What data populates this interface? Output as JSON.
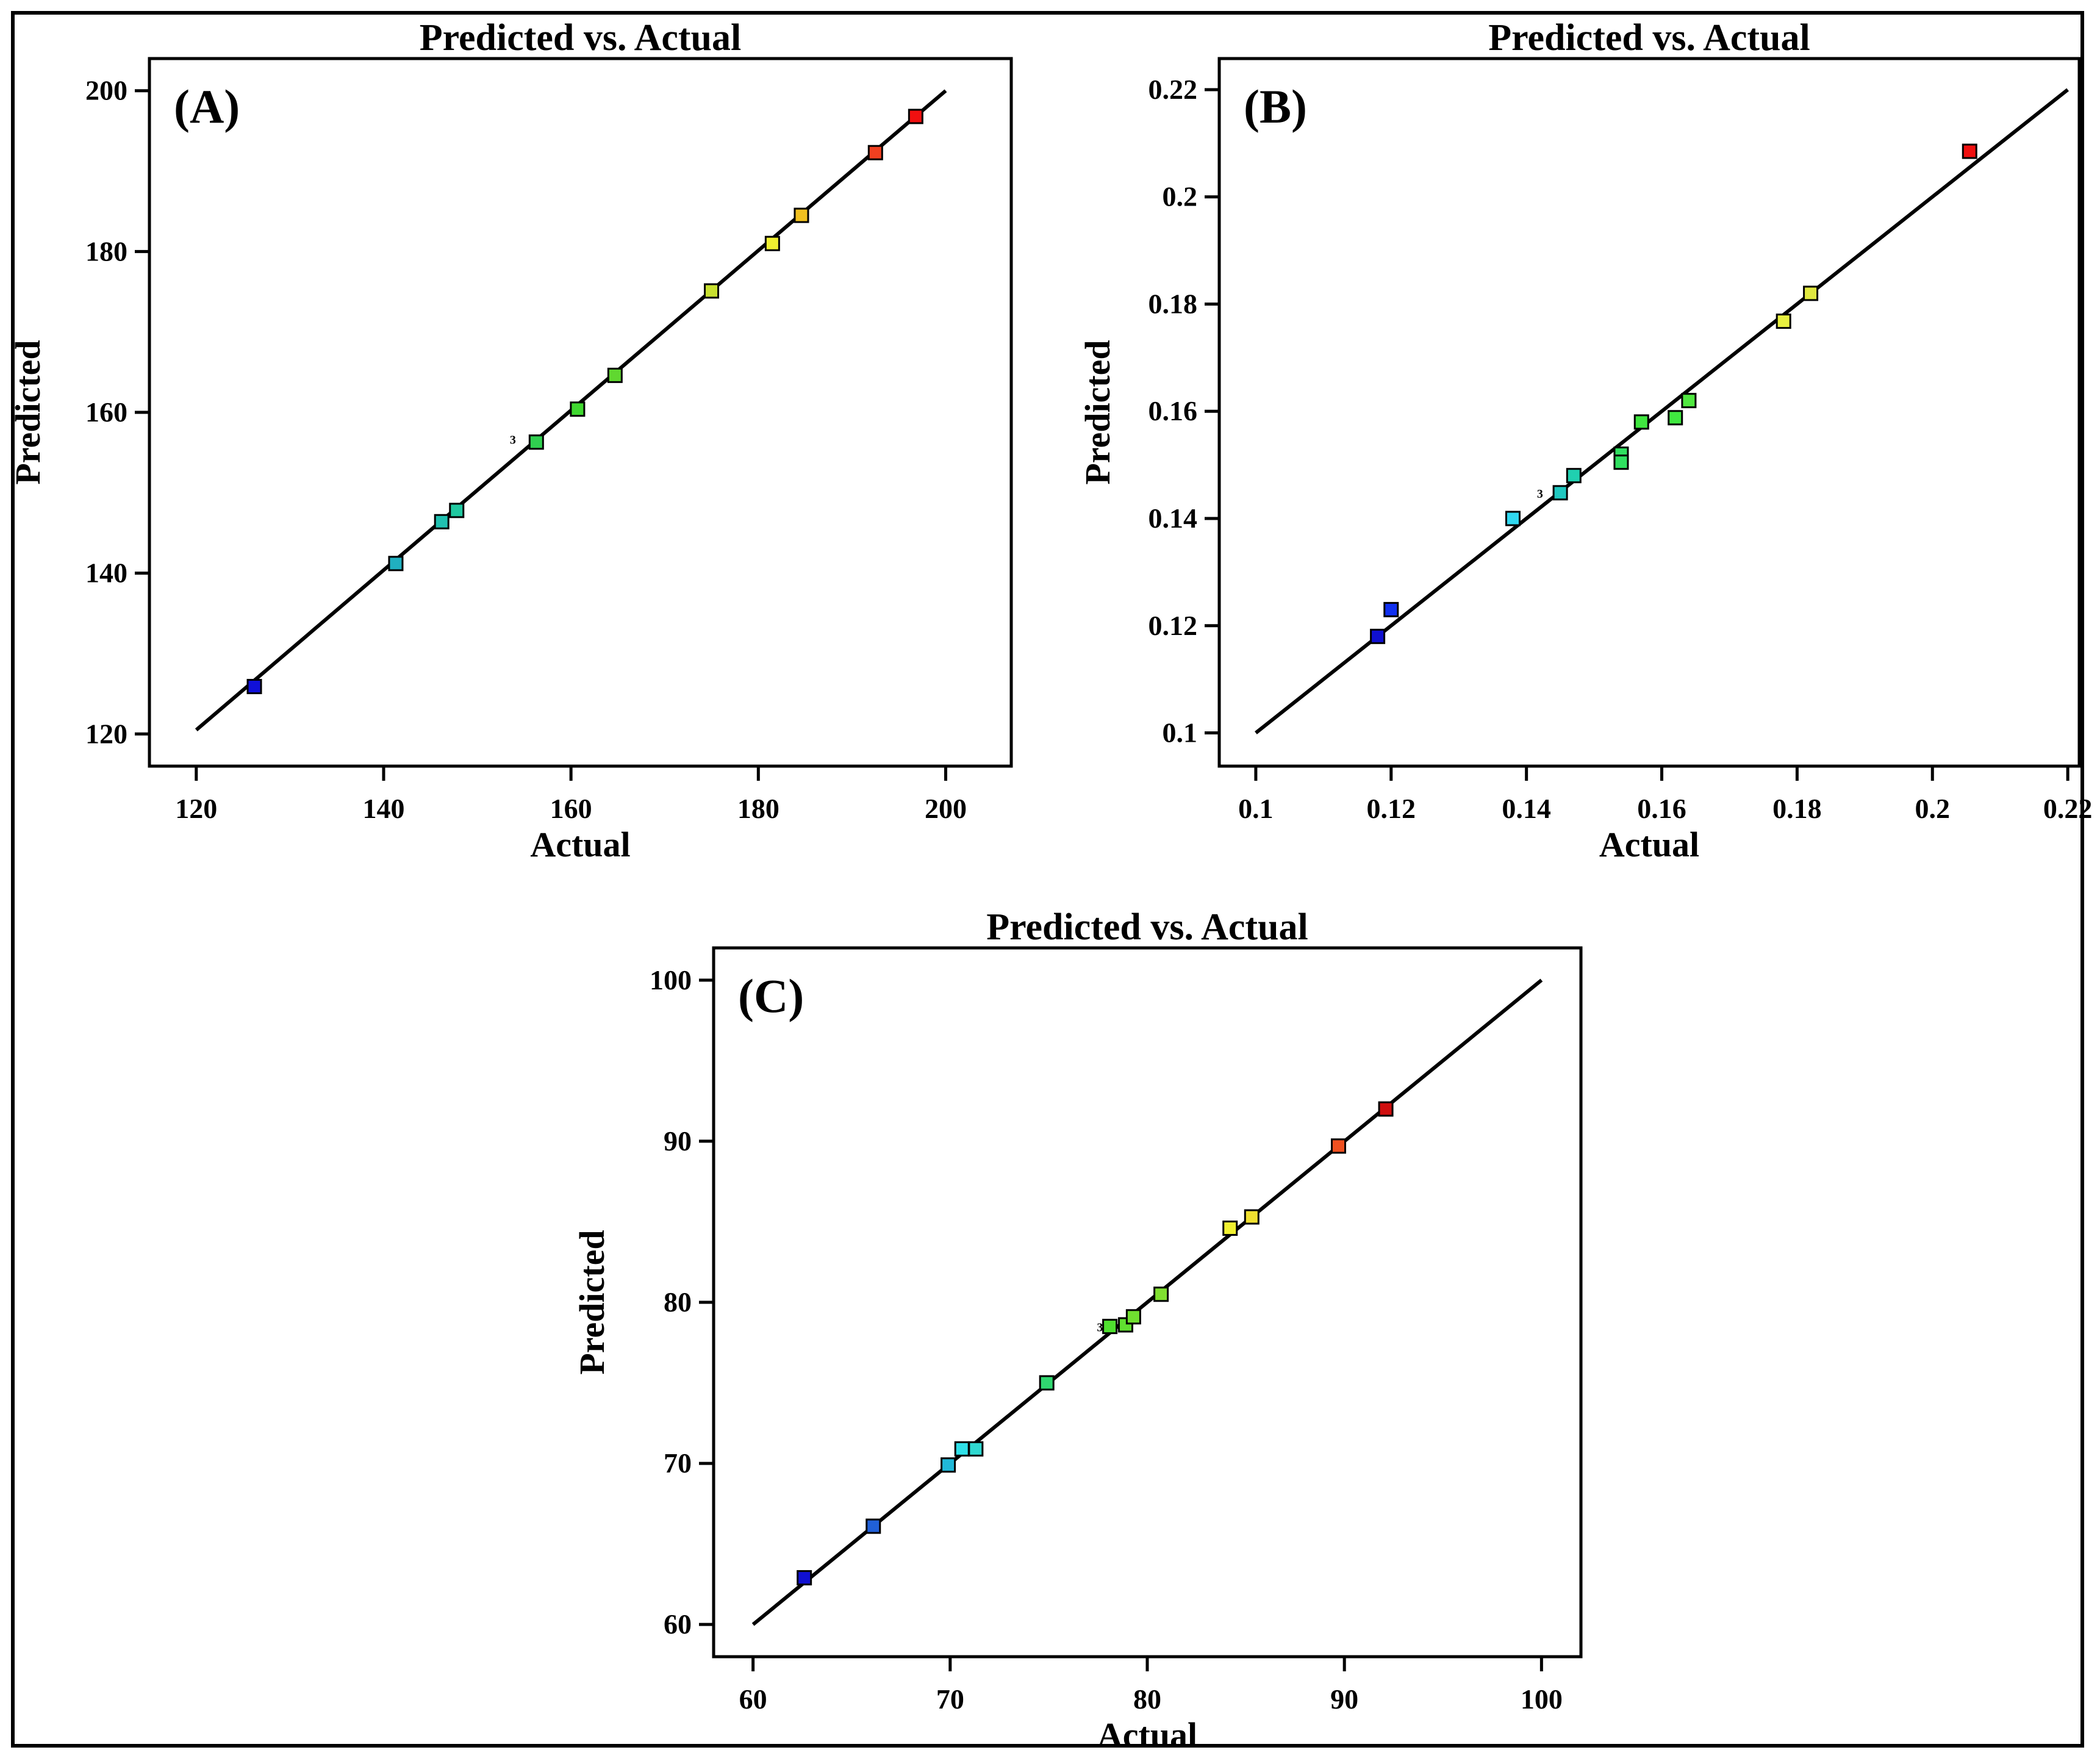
{
  "chart_data": [
    {
      "type": "scatter",
      "panel_label": "(A)",
      "title": "Predicted vs. Actual",
      "xlabel": "Actual",
      "ylabel": "Predicted",
      "xlim": [
        115,
        207
      ],
      "ylim": [
        116,
        204
      ],
      "xticks": [
        120,
        140,
        160,
        180,
        200
      ],
      "yticks": [
        120,
        140,
        160,
        180,
        200
      ],
      "xtick_labels": [
        "120",
        "140",
        "160",
        "180",
        "200"
      ],
      "ytick_labels": [
        "120",
        "140",
        "160",
        "180",
        "200"
      ],
      "reference_line": [
        [
          120,
          120.5
        ],
        [
          200,
          200
        ]
      ],
      "annotation": {
        "text": "3",
        "x": 153.8,
        "y": 156.7
      },
      "points": [
        {
          "x": 126.2,
          "y": 125.9,
          "color": "#1010d8"
        },
        {
          "x": 141.3,
          "y": 141.2,
          "color": "#20b0c0"
        },
        {
          "x": 146.2,
          "y": 146.4,
          "color": "#20c0b0"
        },
        {
          "x": 147.8,
          "y": 147.8,
          "color": "#20c8a0"
        },
        {
          "x": 156.3,
          "y": 156.3,
          "color": "#30d050"
        },
        {
          "x": 160.7,
          "y": 160.4,
          "color": "#40d830"
        },
        {
          "x": 164.7,
          "y": 164.6,
          "color": "#60d830"
        },
        {
          "x": 175.0,
          "y": 175.1,
          "color": "#c8e030"
        },
        {
          "x": 181.5,
          "y": 181.0,
          "color": "#f0f030"
        },
        {
          "x": 184.6,
          "y": 184.5,
          "color": "#f0c020"
        },
        {
          "x": 192.5,
          "y": 192.3,
          "color": "#f04020"
        },
        {
          "x": 196.8,
          "y": 196.8,
          "color": "#f01010"
        }
      ]
    },
    {
      "type": "scatter",
      "panel_label": "(B)",
      "title": "Predicted vs. Actual",
      "xlabel": "Actual",
      "ylabel": "Predicted",
      "xlim": [
        0.0946,
        0.2217
      ],
      "ylim": [
        0.0938,
        0.2258
      ],
      "xticks": [
        0.1,
        0.12,
        0.14,
        0.16,
        0.18,
        0.2,
        0.22
      ],
      "yticks": [
        0.1,
        0.12,
        0.14,
        0.16,
        0.18,
        0.2,
        0.22
      ],
      "xtick_labels": [
        "0.1",
        "0.12",
        "0.14",
        "0.16",
        "0.18",
        "0.2",
        "0.22"
      ],
      "ytick_labels": [
        "0.1",
        "0.12",
        "0.14",
        "0.16",
        "0.18",
        "0.2",
        "0.22"
      ],
      "reference_line": [
        [
          0.1,
          0.1
        ],
        [
          0.22,
          0.22
        ]
      ],
      "annotation": {
        "text": "3",
        "x": 0.142,
        "y": 0.1448
      },
      "points": [
        {
          "x": 0.118,
          "y": 0.118,
          "color": "#1010d0"
        },
        {
          "x": 0.12,
          "y": 0.123,
          "color": "#1030f0"
        },
        {
          "x": 0.138,
          "y": 0.14,
          "color": "#30d8f0"
        },
        {
          "x": 0.145,
          "y": 0.1448,
          "color": "#20c8c0"
        },
        {
          "x": 0.147,
          "y": 0.148,
          "color": "#20d0b0"
        },
        {
          "x": 0.154,
          "y": 0.152,
          "color": "#30e060"
        },
        {
          "x": 0.154,
          "y": 0.1505,
          "color": "#30e060"
        },
        {
          "x": 0.157,
          "y": 0.158,
          "color": "#40e840"
        },
        {
          "x": 0.162,
          "y": 0.1588,
          "color": "#40e840"
        },
        {
          "x": 0.164,
          "y": 0.162,
          "color": "#50e840"
        },
        {
          "x": 0.178,
          "y": 0.1768,
          "color": "#e8f040"
        },
        {
          "x": 0.182,
          "y": 0.182,
          "color": "#e0e840"
        },
        {
          "x": 0.2055,
          "y": 0.2085,
          "color": "#f01010"
        }
      ]
    },
    {
      "type": "scatter",
      "panel_label": "(C)",
      "title": "Predicted vs. Actual",
      "xlabel": "Actual",
      "ylabel": "Predicted",
      "xlim": [
        58,
        102
      ],
      "ylim": [
        58,
        102
      ],
      "xticks": [
        60,
        70,
        80,
        90,
        100
      ],
      "yticks": [
        60,
        70,
        80,
        90,
        100
      ],
      "xtick_labels": [
        "60",
        "70",
        "80",
        "90",
        "100"
      ],
      "ytick_labels": [
        "60",
        "70",
        "80",
        "90",
        "100"
      ],
      "reference_line": [
        [
          60,
          60
        ],
        [
          100,
          100
        ]
      ],
      "annotation": {
        "text": "3",
        "x": 77.6,
        "y": 78.5
      },
      "points": [
        {
          "x": 62.6,
          "y": 62.9,
          "color": "#1010d0"
        },
        {
          "x": 66.1,
          "y": 66.1,
          "color": "#2060d8"
        },
        {
          "x": 69.9,
          "y": 69.9,
          "color": "#20b8d8"
        },
        {
          "x": 70.6,
          "y": 70.9,
          "color": "#30e0e8"
        },
        {
          "x": 71.3,
          "y": 70.9,
          "color": "#30d8d0"
        },
        {
          "x": 74.9,
          "y": 75.0,
          "color": "#30d870"
        },
        {
          "x": 78.1,
          "y": 78.5,
          "color": "#50e030"
        },
        {
          "x": 78.9,
          "y": 78.6,
          "color": "#60e030"
        },
        {
          "x": 79.3,
          "y": 79.1,
          "color": "#70e030"
        },
        {
          "x": 80.7,
          "y": 80.5,
          "color": "#80e030"
        },
        {
          "x": 84.2,
          "y": 84.6,
          "color": "#f0f030"
        },
        {
          "x": 85.3,
          "y": 85.3,
          "color": "#f0e030"
        },
        {
          "x": 89.7,
          "y": 89.7,
          "color": "#f05020"
        },
        {
          "x": 92.1,
          "y": 92.0,
          "color": "#d01010"
        }
      ]
    }
  ]
}
